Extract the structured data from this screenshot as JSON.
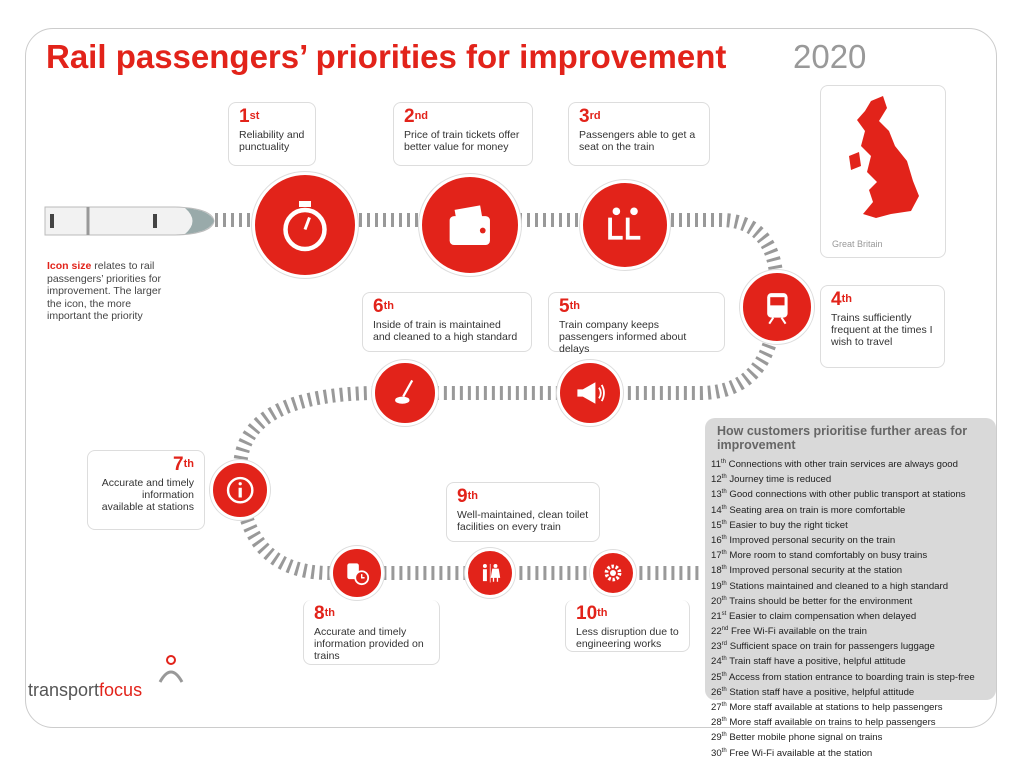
{
  "header": {
    "title": "Rail passengers’ priorities for improvement",
    "year": "2020"
  },
  "note": {
    "highlight": "Icon size",
    "text": " relates to rail passengers’ priorities for improvement. The larger the icon, the more important the priority"
  },
  "map": {
    "label": "Great Britain"
  },
  "priorities": [
    {
      "num": "1",
      "suffix": "st",
      "text": "Reliability and punctuality",
      "icon": "stopwatch-icon"
    },
    {
      "num": "2",
      "suffix": "nd",
      "text": "Price of train tickets offer better value for money",
      "icon": "wallet-icon"
    },
    {
      "num": "3",
      "suffix": "rd",
      "text": "Passengers able to get a seat on the train",
      "icon": "seats-icon"
    },
    {
      "num": "4",
      "suffix": "th",
      "text": "Trains sufficiently frequent at the times I wish to travel",
      "icon": "train-icon"
    },
    {
      "num": "5",
      "suffix": "th",
      "text": "Train company keeps passengers informed about delays",
      "icon": "megaphone-icon"
    },
    {
      "num": "6",
      "suffix": "th",
      "text": "Inside of train is maintained and cleaned to a high standard",
      "icon": "mop-icon"
    },
    {
      "num": "7",
      "suffix": "th",
      "text": "Accurate and timely information available at stations",
      "icon": "info-icon"
    },
    {
      "num": "8",
      "suffix": "th",
      "text": "Accurate and timely information provided on trains",
      "icon": "train-clock-icon"
    },
    {
      "num": "9",
      "suffix": "th",
      "text": "Well-maintained, clean toilet facilities on every train",
      "icon": "toilet-icon"
    },
    {
      "num": "10",
      "suffix": "th",
      "text": "Less disruption due to engineering works",
      "icon": "gear-wrench-icon"
    }
  ],
  "further": {
    "title": "How customers prioritise further areas for improvement",
    "items": [
      {
        "n": "11",
        "s": "th",
        "t": "Connections with other train services are always good"
      },
      {
        "n": "12",
        "s": "th",
        "t": "Journey time is reduced"
      },
      {
        "n": "13",
        "s": "th",
        "t": "Good connections with other public transport at stations"
      },
      {
        "n": "14",
        "s": "th",
        "t": "Seating area on train is more comfortable"
      },
      {
        "n": "15",
        "s": "th",
        "t": "Easier to buy the right ticket"
      },
      {
        "n": "16",
        "s": "th",
        "t": "Improved personal security on the train"
      },
      {
        "n": "17",
        "s": "th",
        "t": "More room to stand comfortably on busy trains"
      },
      {
        "n": "18",
        "s": "th",
        "t": "Improved personal security at the station"
      },
      {
        "n": "19",
        "s": "th",
        "t": "Stations maintained and cleaned to a high standard"
      },
      {
        "n": "20",
        "s": "th",
        "t": "Trains should be better for the environment"
      },
      {
        "n": "21",
        "s": "st",
        "t": "Easier to claim compensation when delayed"
      },
      {
        "n": "22",
        "s": "nd",
        "t": "Free Wi-Fi available on the train"
      },
      {
        "n": "23",
        "s": "rd",
        "t": "Sufficient space on train for passengers luggage"
      },
      {
        "n": "24",
        "s": "th",
        "t": "Train staff have a positive, helpful attitude"
      },
      {
        "n": "25",
        "s": "th",
        "t": "Access from station entrance to boarding train is step-free"
      },
      {
        "n": "26",
        "s": "th",
        "t": "Station staff have a positive, helpful attitude"
      },
      {
        "n": "27",
        "s": "th",
        "t": "More staff available at stations to help passengers"
      },
      {
        "n": "28",
        "s": "th",
        "t": "More staff available on trains to help passengers"
      },
      {
        "n": "29",
        "s": "th",
        "t": "Better mobile phone signal on trains"
      },
      {
        "n": "30",
        "s": "th",
        "t": "Free Wi-Fi available at the station"
      }
    ]
  },
  "logo": {
    "part1": "transport",
    "part2": "focus"
  },
  "colors": {
    "accent": "#e2231a",
    "panel": "#d9d9d9",
    "track": "#888888"
  }
}
